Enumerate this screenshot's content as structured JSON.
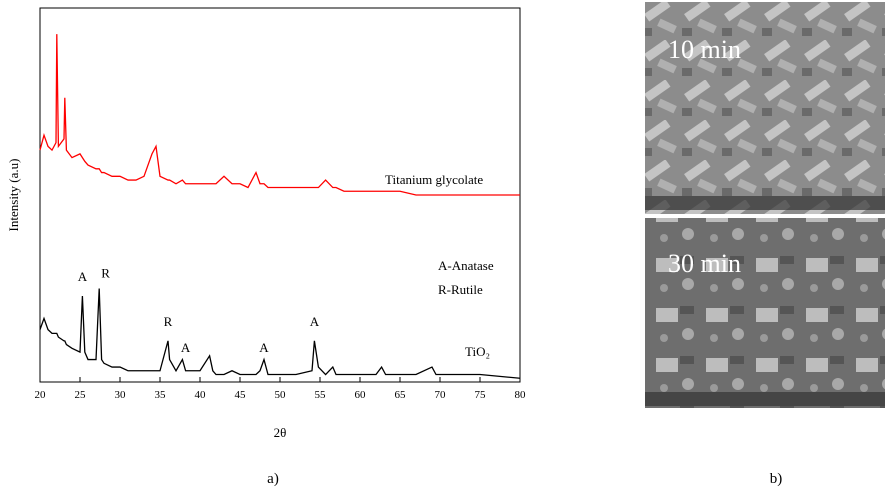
{
  "chart_data": {
    "type": "line",
    "xlabel": "2θ",
    "ylabel": "Intensity (a.u)",
    "xlim": [
      20,
      80
    ],
    "ylim": [
      0,
      100
    ],
    "xticks": [
      20,
      25,
      30,
      35,
      40,
      45,
      50,
      55,
      60,
      65,
      70,
      75,
      80
    ],
    "x": [
      20,
      20.5,
      21,
      21.5,
      22,
      22.1,
      22.3,
      23,
      23.1,
      23.3,
      24,
      25,
      25.3,
      25.6,
      26,
      27,
      27.4,
      27.7,
      28,
      29,
      30,
      31,
      32,
      33,
      33.5,
      34,
      34.5,
      35,
      36,
      36.2,
      37,
      37.8,
      38.2,
      39,
      40,
      41.2,
      41.6,
      42,
      43,
      44,
      45,
      46,
      47,
      47.5,
      48,
      48.5,
      50,
      52,
      54,
      54.3,
      54.8,
      55.7,
      56.6,
      57,
      58,
      60,
      62,
      62.7,
      63.2,
      65,
      67,
      69,
      69.5,
      71,
      75,
      80
    ],
    "series": [
      {
        "name": "Titanium glycolate",
        "color": "#ff0000",
        "values": [
          62,
          66,
          63,
          62,
          64,
          93,
          63,
          65,
          76,
          62,
          60,
          61,
          60,
          59,
          58,
          57,
          57,
          56,
          56,
          55,
          55,
          54,
          54,
          55,
          58,
          61,
          63,
          55,
          54,
          54,
          53,
          54,
          53,
          53,
          53,
          53,
          53,
          53,
          55,
          53,
          53,
          52,
          56,
          53,
          53,
          52,
          52,
          52,
          52,
          52,
          52,
          54,
          52,
          52,
          51,
          51,
          51,
          51,
          51,
          51,
          50,
          50,
          50,
          50,
          50,
          50
        ]
      },
      {
        "name": "TiO₂",
        "color": "#000000",
        "values": [
          14,
          17,
          14,
          13,
          13,
          13,
          12,
          11,
          11,
          10,
          9,
          8,
          23,
          8,
          6,
          6,
          25,
          6,
          5,
          4,
          4,
          3,
          3,
          3,
          3,
          3,
          3,
          3,
          11,
          6,
          3,
          6,
          3,
          3,
          3,
          7,
          3,
          2,
          2,
          3,
          2,
          2,
          2,
          3,
          6,
          2,
          2,
          2,
          3,
          11,
          4,
          2,
          4,
          2,
          2,
          2,
          2,
          4,
          2,
          2,
          2,
          4,
          2,
          2,
          2,
          1
        ]
      }
    ],
    "annotations": [
      {
        "text": "A",
        "x": 25.3,
        "y": 27
      },
      {
        "text": "R",
        "x": 28.2,
        "y": 28
      },
      {
        "text": "R",
        "x": 36,
        "y": 15
      },
      {
        "text": "A",
        "x": 38.2,
        "y": 8
      },
      {
        "text": "A",
        "x": 48,
        "y": 8
      },
      {
        "text": "A",
        "x": 54.3,
        "y": 15
      }
    ],
    "notes": [
      "A-Anatase",
      "R-Rutile"
    ],
    "panel_label": "a)"
  },
  "images": {
    "panel_label": "b)",
    "labels": [
      "10 min",
      "30 min"
    ]
  }
}
